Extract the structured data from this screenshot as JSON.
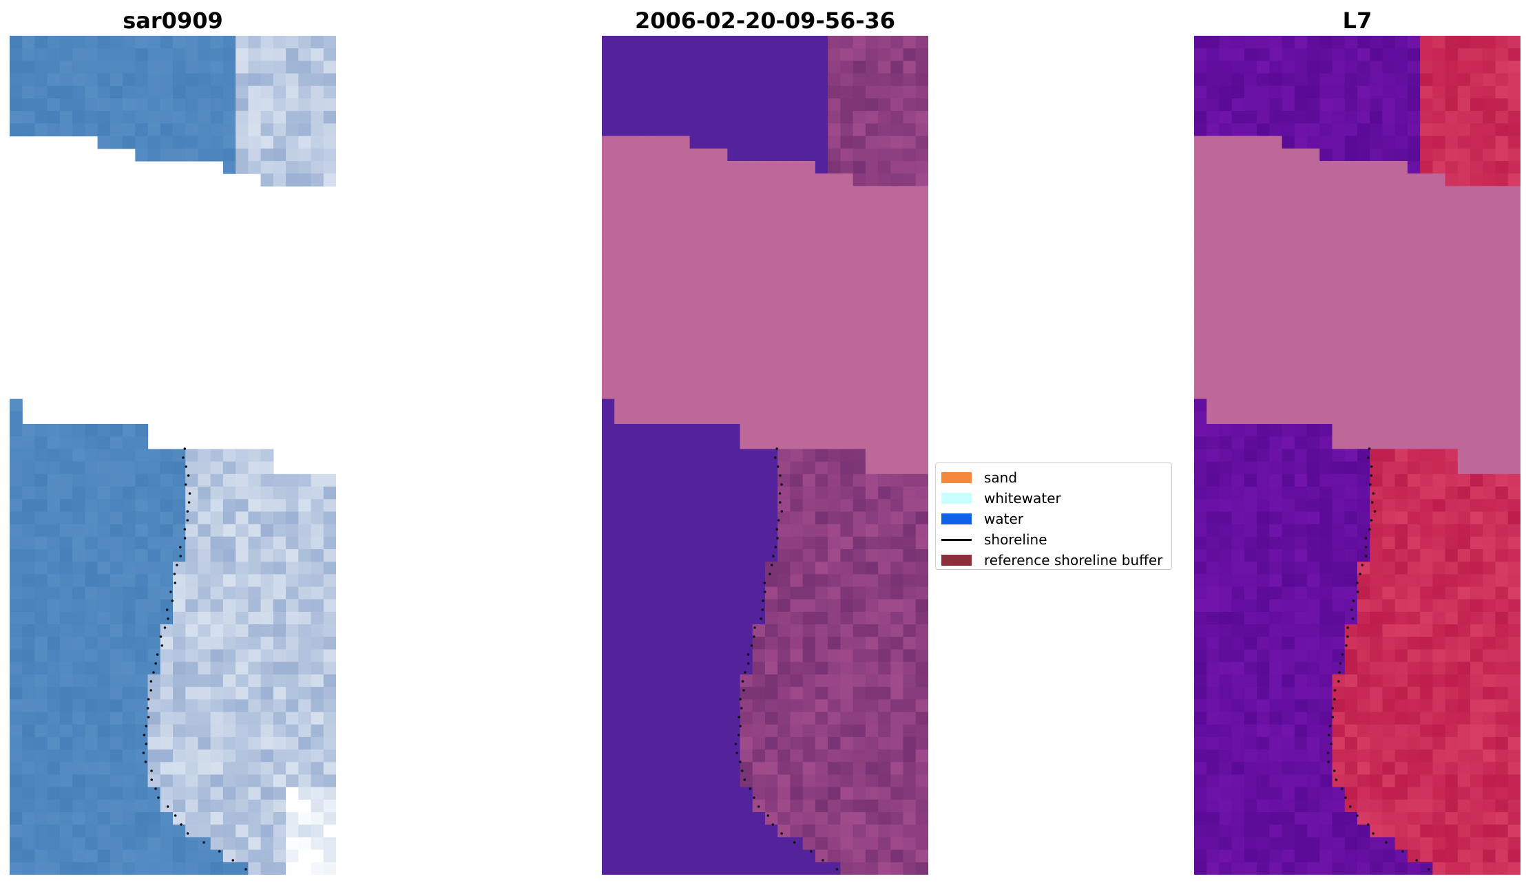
{
  "panels": [
    {
      "id": "satellite-rgb",
      "title": "sar0909"
    },
    {
      "id": "classified",
      "title": "2006-02-20-09-56-36"
    },
    {
      "id": "index",
      "title": "L7"
    }
  ],
  "legend": {
    "items": [
      {
        "label": "sand",
        "color": "#f5893b",
        "kind": "patch"
      },
      {
        "label": "whitewater",
        "color": "#c8ffff",
        "kind": "patch"
      },
      {
        "label": "water",
        "color": "#1160ea",
        "kind": "patch"
      },
      {
        "label": "shoreline",
        "color": "#000000",
        "kind": "line"
      },
      {
        "label": "reference shoreline buffer",
        "color": "#8b2f3a",
        "kind": "patch"
      }
    ]
  },
  "colors": {
    "water_rgb": "#4d84bb",
    "water_class": "#54229a",
    "land_class": "#8a3a80",
    "cloud_mask": "#bd6898",
    "index_low": "#6010a0",
    "index_high": "#c82050"
  }
}
